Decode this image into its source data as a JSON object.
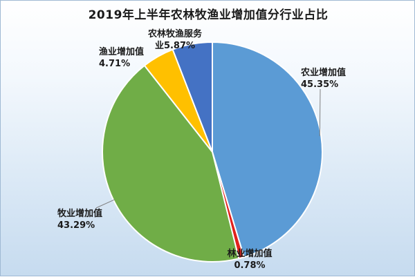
{
  "chart_data": {
    "type": "pie",
    "title": "2019年上半年农林牧渔业增加值分行业占比",
    "slices": [
      {
        "name": "农业增加值",
        "value": 45.35,
        "value_label": "45.35%",
        "color": "#5b9bd5"
      },
      {
        "name": "林业增加值",
        "value": 0.78,
        "value_label": "0.78%",
        "color": "#e0211d"
      },
      {
        "name": "牧业增加值",
        "value": 43.29,
        "value_label": "43.29%",
        "color": "#70ad47"
      },
      {
        "name": "渔业增加值",
        "value": 4.71,
        "value_label": "4.71%",
        "color": "#ffc000"
      },
      {
        "name": "农林牧渔服务业",
        "value": 5.87,
        "value_label": "5.87%",
        "color": "#4472c4"
      }
    ],
    "label_lines": [
      [
        "农业增加值",
        "45.35%"
      ],
      [
        "林业增加值",
        "0.78%"
      ],
      [
        "牧业增加值",
        "43.29%"
      ],
      [
        "渔业增加值",
        "4.71%"
      ],
      [
        "农林牧渔服务",
        "业5.87%"
      ]
    ],
    "legend": "none",
    "start": "12 o'clock, clockwise"
  }
}
